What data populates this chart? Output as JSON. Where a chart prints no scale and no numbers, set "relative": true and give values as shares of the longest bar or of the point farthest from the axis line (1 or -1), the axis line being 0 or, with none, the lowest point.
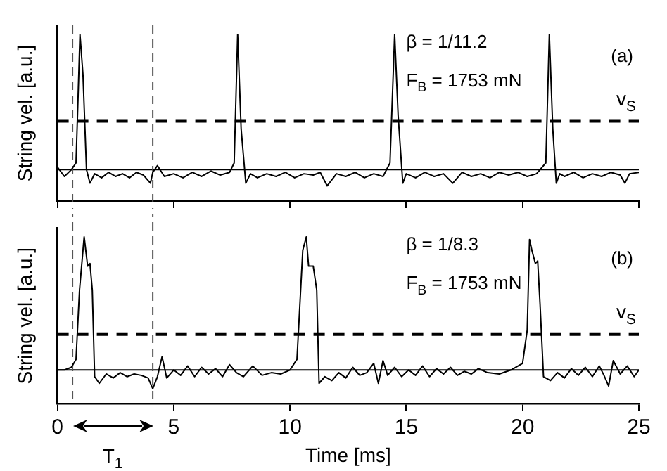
{
  "chart_data": [
    {
      "type": "line",
      "ylabel": "String vel. [a.u.]",
      "relative": true,
      "xlim": [
        0,
        25
      ],
      "xticks": [
        {
          "value": 0,
          "label": null
        },
        {
          "value": 5,
          "label": null
        },
        {
          "value": 10,
          "label": null
        },
        {
          "value": 15,
          "label": null
        },
        {
          "value": 20,
          "label": null
        },
        {
          "value": 25,
          "label": null
        }
      ],
      "tick_labels": false,
      "grid": false,
      "legend": false,
      "marker": "none",
      "line_style": "solid",
      "series": [
        {
          "color": "#000000",
          "x": [
            0,
            0.3,
            0.6,
            0.8,
            0.9,
            0.97,
            1.1,
            1.25,
            1.4,
            1.6,
            1.9,
            2.2,
            2.5,
            2.8,
            3.1,
            3.4,
            3.7,
            4.0,
            4.1,
            4.3,
            4.6,
            5.0,
            5.4,
            5.8,
            6.2,
            6.6,
            7.0,
            7.4,
            7.6,
            7.75,
            7.9,
            8.1,
            8.3,
            8.6,
            9.0,
            9.4,
            9.8,
            10.2,
            10.6,
            11.0,
            11.3,
            11.6,
            12.0,
            12.4,
            12.8,
            13.2,
            13.6,
            14.0,
            14.3,
            14.5,
            14.65,
            14.85,
            15.0,
            15.4,
            15.8,
            16.2,
            16.6,
            17.0,
            17.4,
            17.8,
            18.2,
            18.6,
            19.0,
            19.4,
            19.8,
            20.2,
            20.6,
            21.0,
            21.15,
            21.3,
            21.45,
            21.6,
            21.8,
            22.2,
            22.6,
            23.0,
            23.4,
            23.8,
            24.2,
            24.4,
            24.6,
            25
          ],
          "values": [
            0.02,
            -0.05,
            0.0,
            0.05,
            0.6,
            1,
            0.7,
            0.0,
            -0.1,
            -0.03,
            -0.06,
            -0.02,
            -0.05,
            -0.03,
            -0.06,
            -0.02,
            -0.04,
            -0.1,
            -0.02,
            0.03,
            -0.05,
            -0.03,
            -0.06,
            -0.02,
            -0.05,
            -0.01,
            -0.04,
            -0.02,
            0.05,
            1,
            0.3,
            -0.1,
            -0.03,
            -0.06,
            -0.03,
            -0.05,
            -0.02,
            -0.06,
            -0.03,
            -0.04,
            -0.02,
            -0.12,
            -0.03,
            -0.05,
            -0.02,
            -0.06,
            -0.03,
            -0.05,
            0.05,
            1,
            0.4,
            -0.1,
            -0.03,
            -0.06,
            -0.02,
            -0.05,
            -0.03,
            -0.1,
            -0.02,
            -0.05,
            -0.03,
            -0.06,
            -0.02,
            -0.04,
            -0.02,
            -0.05,
            -0.03,
            0.05,
            1,
            0.3,
            -0.1,
            -0.03,
            -0.05,
            -0.02,
            -0.06,
            -0.03,
            -0.05,
            -0.02,
            -0.04,
            -0.1,
            -0.03,
            -0.02
          ]
        }
      ],
      "ref_lines": [
        {
          "axis": "y",
          "value": 0,
          "label": null,
          "color": "#000000",
          "line_style": "solid"
        },
        {
          "axis": "y",
          "value": 0.36,
          "label": "v$_{S}$",
          "color": "#000000",
          "line_style": "dashed"
        },
        {
          "axis": "x",
          "value": 0.65,
          "label": null,
          "color": "#555555",
          "line_style": "dashed"
        },
        {
          "axis": "x",
          "value": 4.1,
          "label": null,
          "color": "#555555",
          "line_style": "dashed"
        }
      ],
      "annotations": [
        "(a)",
        "β = 1/11.2",
        "F$_{B}$ = 1753 mN"
      ]
    },
    {
      "type": "line",
      "ylabel": "String vel. [a.u.]",
      "xlabel": "Time [ms]",
      "relative": true,
      "xlim": [
        0,
        25
      ],
      "xticks": [
        0,
        5,
        10,
        15,
        20,
        25
      ],
      "tick_labels": "x",
      "grid": false,
      "legend": false,
      "marker": "none",
      "line_style": "solid",
      "series": [
        {
          "color": "#000000",
          "x": [
            0,
            0.3,
            0.6,
            0.8,
            0.95,
            1.15,
            1.3,
            1.4,
            1.5,
            1.6,
            1.8,
            2.1,
            2.4,
            2.7,
            3.0,
            3.3,
            3.6,
            3.9,
            4.1,
            4.3,
            4.5,
            4.7,
            5.0,
            5.3,
            5.6,
            5.9,
            6.2,
            6.5,
            6.8,
            7.1,
            7.4,
            7.7,
            8.0,
            8.4,
            8.8,
            9.2,
            9.6,
            10.0,
            10.3,
            10.55,
            10.7,
            10.8,
            11.0,
            11.15,
            11.25,
            11.5,
            11.8,
            12.1,
            12.4,
            12.7,
            13.0,
            13.3,
            13.6,
            13.8,
            14.0,
            14.2,
            14.5,
            14.8,
            15.1,
            15.4,
            15.7,
            16.0,
            16.3,
            16.6,
            16.9,
            17.2,
            17.5,
            17.8,
            18.1,
            18.5,
            19.0,
            19.5,
            20.0,
            20.2,
            20.3,
            20.4,
            20.55,
            20.65,
            20.75,
            20.9,
            21.2,
            21.5,
            21.8,
            22.1,
            22.4,
            22.7,
            23.0,
            23.3,
            23.5,
            23.7,
            23.9,
            24.2,
            24.5,
            24.8,
            25
          ],
          "values": [
            0.0,
            0.0,
            0.02,
            0.08,
            0.6,
            1,
            0.78,
            0.8,
            0.6,
            -0.05,
            -0.1,
            -0.03,
            -0.06,
            -0.02,
            -0.05,
            -0.03,
            -0.04,
            -0.06,
            -0.14,
            -0.05,
            0.1,
            -0.06,
            0.0,
            -0.04,
            0.03,
            -0.05,
            0.02,
            -0.03,
            0.01,
            -0.05,
            0.04,
            -0.02,
            -0.05,
            0.03,
            -0.04,
            -0.02,
            -0.03,
            0.0,
            0.08,
            0.9,
            1,
            0.78,
            0.78,
            0.6,
            -0.1,
            -0.05,
            -0.08,
            -0.02,
            -0.06,
            0.02,
            -0.04,
            -0.02,
            0.05,
            -0.1,
            0.07,
            -0.04,
            0.02,
            -0.05,
            0.0,
            -0.04,
            0.03,
            -0.05,
            0.01,
            -0.03,
            0.02,
            -0.04,
            -0.01,
            -0.03,
            0.01,
            -0.02,
            -0.03,
            0.0,
            0.05,
            0.3,
            0.98,
            0.9,
            0.8,
            0.82,
            0.5,
            -0.05,
            -0.08,
            -0.02,
            -0.06,
            0.01,
            -0.04,
            0.02,
            -0.05,
            0.03,
            -0.04,
            -0.12,
            0.07,
            -0.03,
            0.03,
            -0.05,
            0.0
          ]
        }
      ],
      "ref_lines": [
        {
          "axis": "y",
          "value": 0,
          "label": null,
          "color": "#000000",
          "line_style": "solid"
        },
        {
          "axis": "y",
          "value": 0.27,
          "label": "v$_{S}$",
          "color": "#000000",
          "line_style": "dashed"
        },
        {
          "axis": "x",
          "value": 0.65,
          "label": null,
          "color": "#555555",
          "line_style": "dashed"
        },
        {
          "axis": "x",
          "value": 4.1,
          "label": null,
          "color": "#555555",
          "line_style": "dashed"
        }
      ],
      "annotations": [
        "(b)",
        "β = 1/8.3",
        "F$_{B}$ = 1753 mN",
        "T$_{1}$"
      ]
    }
  ]
}
